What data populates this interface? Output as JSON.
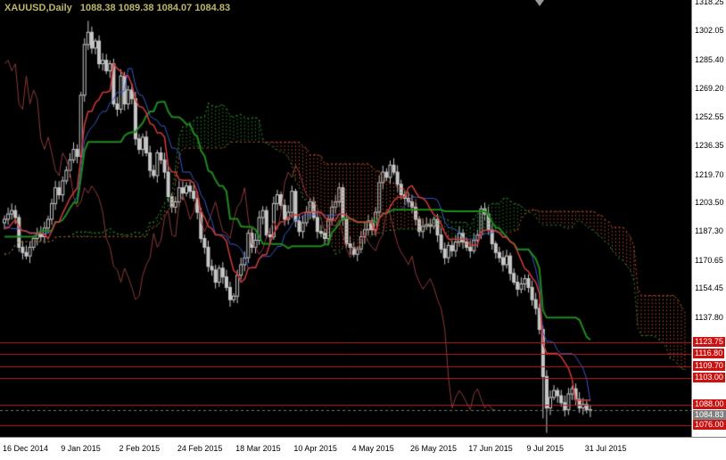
{
  "window": {
    "symbol_period": "XAUUSD,Daily",
    "quote_ohlc": "1088.38 1089.38 1084.07 1084.83"
  },
  "style": {
    "background": "#000000",
    "axis_bg": "#ffffff",
    "axis_text": "#000000",
    "axis_border": "#7f7f7f",
    "title_color": "#bdb76b",
    "candle_bull": "#000000",
    "candle_bear": "#c8c8c8",
    "candle_border": "#c8c8c8",
    "candle_wick": "#c8c8c8",
    "tenkan": "#d23b3b",
    "kijun": "#1f8a1f",
    "chikou": "#8b3a3a",
    "span_a": "#2f8f2f",
    "span_b": "#c2552f",
    "aux_line": "#3a57c8",
    "level_line": "#b22222",
    "level_tag_bg": "#cc1111",
    "level_tag_text": "#ffffff",
    "current_tag_bg": "#808080",
    "current_tag_text": "#ffffff"
  },
  "chart_data": {
    "type": "candlestick",
    "symbol": "XAUUSD",
    "timeframe": "Daily",
    "ohlc_current": {
      "open": 1088.38,
      "high": 1089.38,
      "low": 1084.07,
      "close": 1084.83
    },
    "last_price": 1084.83,
    "ylim": [
      1069.5,
      1319.5
    ],
    "y_ticks": [
      1318.25,
      1302.05,
      1285.4,
      1269.2,
      1252.55,
      1236.35,
      1219.7,
      1203.5,
      1187.3,
      1170.65,
      1154.45,
      1137.8
    ],
    "x_labels": [
      "16 Dec 2014",
      "9 Jan 2015",
      "2 Feb 2015",
      "24 Feb 2015",
      "18 Mar 2015",
      "10 Apr 2015",
      "4 May 2015",
      "26 May 2015",
      "17 Jun 2015",
      "9 Jul 2015",
      "31 Jul 2015"
    ],
    "x_label_every_n_bars": 16,
    "support_resistance_levels": [
      1123.75,
      1116.8,
      1109.7,
      1103.0,
      1088.0,
      1076.0
    ],
    "indicators": {
      "ichimoku": {
        "tenkan": 9,
        "kijun": 26,
        "senkou_b": 52,
        "shift": 26
      },
      "aux_midline_period": 13
    },
    "pre_closes": [
      1183,
      1178,
      1172,
      1166,
      1171,
      1178,
      1186,
      1193,
      1198,
      1192,
      1186,
      1179,
      1171,
      1166,
      1173,
      1181,
      1189,
      1196,
      1202,
      1197,
      1190,
      1184,
      1177,
      1183,
      1190,
      1195,
      1200,
      1194,
      1188,
      1192
    ],
    "closes": [
      1194,
      1197,
      1199,
      1195,
      1178,
      1175,
      1173,
      1178,
      1183,
      1186,
      1184,
      1189,
      1194,
      1203,
      1212,
      1208,
      1216,
      1222,
      1228,
      1234,
      1230,
      1265,
      1294,
      1301,
      1292,
      1296,
      1283,
      1285,
      1279,
      1283,
      1260,
      1257,
      1276,
      1260,
      1268,
      1263,
      1240,
      1234,
      1241,
      1232,
      1222,
      1219,
      1232,
      1228,
      1221,
      1207,
      1201,
      1204,
      1212,
      1209,
      1213,
      1210,
      1206,
      1198,
      1183,
      1178,
      1167,
      1165,
      1158,
      1166,
      1161,
      1155,
      1148,
      1150,
      1162,
      1168,
      1172,
      1186,
      1178,
      1182,
      1195,
      1199,
      1185,
      1184,
      1203,
      1208,
      1202,
      1194,
      1198,
      1210,
      1193,
      1187,
      1192,
      1198,
      1204,
      1195,
      1187,
      1186,
      1183,
      1194,
      1201,
      1204,
      1212,
      1194,
      1180,
      1178,
      1174,
      1177,
      1184,
      1188,
      1193,
      1188,
      1198,
      1215,
      1221,
      1218,
      1225,
      1221,
      1214,
      1208,
      1206,
      1204,
      1201,
      1194,
      1187,
      1190,
      1191,
      1190,
      1194,
      1185,
      1177,
      1172,
      1179,
      1176,
      1181,
      1186,
      1181,
      1178,
      1176,
      1182,
      1185,
      1200,
      1197,
      1188,
      1180,
      1175,
      1172,
      1168,
      1173,
      1163,
      1158,
      1154,
      1157,
      1160,
      1155,
      1148,
      1143,
      1131,
      1104,
      1086,
      1092,
      1096,
      1093,
      1089,
      1085,
      1094,
      1097,
      1091,
      1086,
      1088,
      1085,
      1084.83
    ],
    "wick_overrides": {
      "23": {
        "high": 1307.5
      },
      "148": {
        "low": 1080
      },
      "149": {
        "low": 1071.8
      }
    }
  }
}
